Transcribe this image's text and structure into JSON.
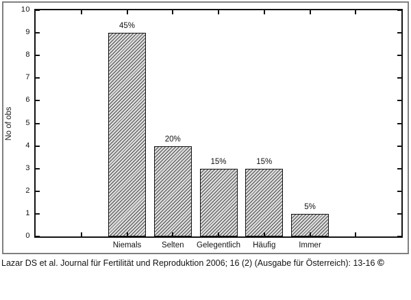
{
  "chart_data": {
    "type": "bar",
    "categories": [
      "Niemals",
      "Selten",
      "Gelegentlich",
      "Häufig",
      "Immer"
    ],
    "values": [
      9,
      4,
      3,
      3,
      1
    ],
    "bar_labels": [
      "45%",
      "20%",
      "15%",
      "15%",
      "5%"
    ],
    "title": "",
    "xlabel": "",
    "ylabel": "No of obs",
    "ylim": [
      0,
      10
    ],
    "yticks": [
      0,
      1,
      2,
      3,
      4,
      5,
      6,
      7,
      8,
      9,
      10
    ],
    "x_slots": 8,
    "grid": false,
    "legend": "none",
    "bar_style": "diagonal-hatch",
    "frame": "full-box-with-inward-ticks"
  },
  "caption": {
    "text": "Lazar DS et al. Journal für Fertilität und Reproduktion 2006; 16 (2) (Ausgabe für Österreich): 13-16",
    "copyright": "©"
  },
  "colors": {
    "background": "#ffffff",
    "axis": "#111111",
    "text": "#111111",
    "outer_border": "#7f7f7f",
    "hatch_line": "#4d4d4d",
    "hatch_background": "#dcdcdc"
  }
}
